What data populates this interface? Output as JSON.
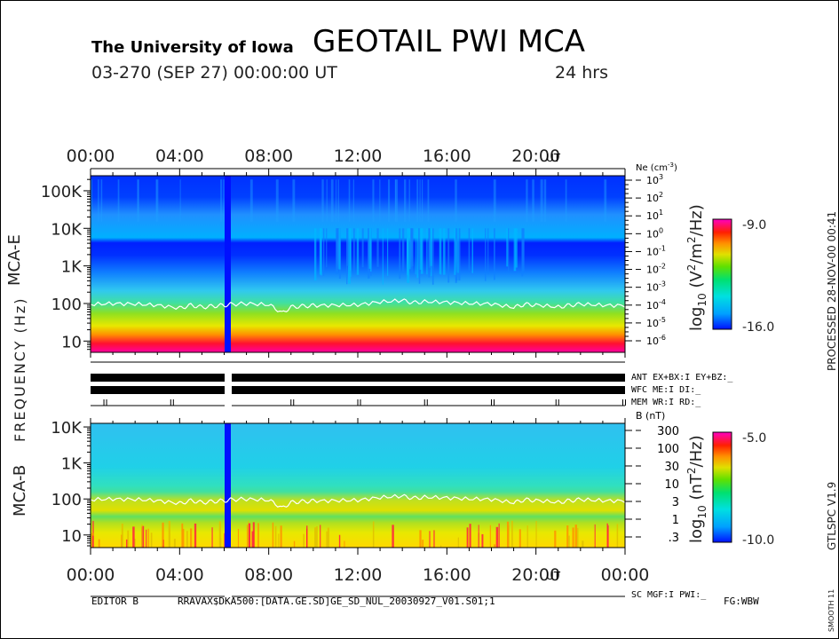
{
  "header": {
    "institution": "The University of Iowa",
    "title": "GEOTAIL PWI MCA",
    "date_line": "03-270 (SEP 27) 00:00:00 UT",
    "duration": "24 hrs"
  },
  "colors": {
    "mca_e_scale": [
      "#0010ff",
      "#00a0ff",
      "#00e0e0",
      "#00e070",
      "#60e000",
      "#e0e000",
      "#ff9000",
      "#ff2000",
      "#ff00c0"
    ],
    "mca_b_scale": [
      "#0010ff",
      "#00a0ff",
      "#00e0e0",
      "#00e070",
      "#60e000",
      "#e0e000",
      "#ff9000",
      "#ff2000",
      "#ff00c0"
    ]
  },
  "frequency_label": "FREQUENCY (Hz)",
  "side_labels": {
    "processed": "PROCESSED 28-NOV-00  00:41",
    "version": "GTLSPC  V1.9",
    "smooth": "SMOOTH 11"
  },
  "footer": {
    "editor": "EDITOR B",
    "path": "RRAVAX$DKA500:[DATA.GE.SD]GE_SD_NUL_20030927_V01.S01;1",
    "flag": "FG:WBW"
  },
  "status": {
    "ant": "ANT EX+BX:I EY+BZ:_",
    "wfc": "WFC ME:I   DI:_",
    "mem": "MEM WR:I   RD:_",
    "sc": "SC MGF:I   PWI:_"
  },
  "chart_data": [
    {
      "type": "heatmap",
      "name": "MCA-E",
      "ylabel": "MCA-E",
      "x_axis": {
        "ticks": [
          "00:00",
          "04:00",
          "08:00",
          "12:00",
          "16:00",
          "20:00"
        ],
        "unit": "UT",
        "range_hours": [
          0,
          24
        ]
      },
      "y_axis": {
        "ticks": [
          "10",
          "100",
          "1K",
          "10K",
          "100K"
        ],
        "log_range": [
          0.7,
          5.4
        ]
      },
      "right_axis": {
        "title": "Ne (cm",
        "title_sup": "-3",
        "title_close": ")",
        "ticks": [
          {
            "base": "10",
            "exp": "3"
          },
          {
            "base": "10",
            "exp": "2"
          },
          {
            "base": "10",
            "exp": "1"
          },
          {
            "base": "10",
            "exp": "0"
          },
          {
            "base": "10",
            "exp": "-1"
          },
          {
            "base": "10",
            "exp": "-2"
          },
          {
            "base": "10",
            "exp": "-3"
          },
          {
            "base": "10",
            "exp": "-4"
          },
          {
            "base": "10",
            "exp": "-5"
          },
          {
            "base": "10",
            "exp": "-6"
          }
        ]
      },
      "colorbar": {
        "label_prefix": "log",
        "label_sub": "10",
        "label_main": " (V",
        "label_sup": "2",
        "label_end": "/m",
        "label_sup2": "2",
        "label_tail": "/Hz)",
        "max": "-9.0",
        "min": "-16.0"
      },
      "data_gap_hours": [
        6.05,
        6.3
      ],
      "plasma_trace_hz": [
        [
          0,
          95
        ],
        [
          1,
          100
        ],
        [
          2,
          97
        ],
        [
          3,
          90
        ],
        [
          4,
          75
        ],
        [
          4.5,
          90
        ],
        [
          5,
          80
        ],
        [
          5.5,
          85
        ],
        [
          6,
          90
        ],
        [
          6.3,
          95
        ],
        [
          7,
          100
        ],
        [
          8,
          92
        ],
        [
          8.6,
          55
        ],
        [
          9,
          80
        ],
        [
          9.5,
          85
        ],
        [
          10,
          88
        ],
        [
          11,
          90
        ],
        [
          12,
          92
        ],
        [
          13,
          110
        ],
        [
          14,
          120
        ],
        [
          14.5,
          105
        ],
        [
          15,
          112
        ],
        [
          16,
          108
        ],
        [
          17,
          100
        ],
        [
          18,
          98
        ],
        [
          19,
          78
        ],
        [
          19.5,
          95
        ],
        [
          20,
          92
        ],
        [
          21,
          80
        ],
        [
          21.5,
          90
        ],
        [
          22,
          96
        ],
        [
          23,
          90
        ],
        [
          24,
          88
        ]
      ]
    },
    {
      "type": "heatmap",
      "name": "MCA-B",
      "ylabel": "MCA-B",
      "x_axis": {
        "ticks": [
          "00:00",
          "04:00",
          "08:00",
          "12:00",
          "16:00",
          "20:00",
          "00:00"
        ],
        "unit": "UT",
        "range_hours": [
          0,
          24
        ]
      },
      "y_axis": {
        "ticks": [
          "10",
          "100",
          "1K",
          "10K"
        ],
        "log_range": [
          0.65,
          4.1
        ]
      },
      "right_axis": {
        "title": "B (nT)",
        "ticks": [
          "300",
          "100",
          "30",
          "10",
          "3",
          "1",
          ".3"
        ]
      },
      "colorbar": {
        "label_prefix": "log",
        "label_sub": "10",
        "label_main": " (nT",
        "label_sup": "2",
        "label_tail": "/Hz)",
        "max": "-5.0",
        "min": "-10.0"
      },
      "data_gap_hours": [
        6.05,
        6.3
      ],
      "plasma_trace_hz": [
        [
          0,
          95
        ],
        [
          1,
          100
        ],
        [
          2,
          97
        ],
        [
          3,
          90
        ],
        [
          4,
          75
        ],
        [
          4.5,
          90
        ],
        [
          5,
          80
        ],
        [
          5.5,
          85
        ],
        [
          6,
          90
        ],
        [
          6.3,
          95
        ],
        [
          7,
          100
        ],
        [
          8,
          92
        ],
        [
          8.6,
          55
        ],
        [
          9,
          80
        ],
        [
          9.5,
          85
        ],
        [
          10,
          88
        ],
        [
          11,
          90
        ],
        [
          12,
          92
        ],
        [
          13,
          110
        ],
        [
          14,
          120
        ],
        [
          14.5,
          105
        ],
        [
          15,
          112
        ],
        [
          16,
          108
        ],
        [
          17,
          100
        ],
        [
          18,
          98
        ],
        [
          19,
          78
        ],
        [
          19.5,
          95
        ],
        [
          20,
          92
        ],
        [
          21,
          80
        ],
        [
          21.5,
          90
        ],
        [
          22,
          96
        ],
        [
          23,
          90
        ],
        [
          24,
          88
        ]
      ]
    }
  ]
}
